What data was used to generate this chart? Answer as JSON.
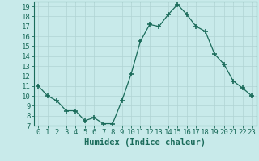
{
  "xlabel": "Humidex (Indice chaleur)",
  "x_values": [
    0,
    1,
    2,
    3,
    4,
    5,
    6,
    7,
    8,
    9,
    10,
    11,
    12,
    13,
    14,
    15,
    16,
    17,
    18,
    19,
    20,
    21,
    22,
    23
  ],
  "y_values": [
    11,
    10,
    9.5,
    8.5,
    8.5,
    7.5,
    7.8,
    7.2,
    7.2,
    9.5,
    12.2,
    15.5,
    17.2,
    17.0,
    18.2,
    19.2,
    18.2,
    17.0,
    16.5,
    14.2,
    13.2,
    11.5,
    10.8,
    10.0
  ],
  "ylim": [
    7,
    19.5
  ],
  "xlim": [
    -0.5,
    23.5
  ],
  "yticks": [
    7,
    8,
    9,
    10,
    11,
    12,
    13,
    14,
    15,
    16,
    17,
    18,
    19
  ],
  "xticks": [
    0,
    1,
    2,
    3,
    4,
    5,
    6,
    7,
    8,
    9,
    10,
    11,
    12,
    13,
    14,
    15,
    16,
    17,
    18,
    19,
    20,
    21,
    22,
    23
  ],
  "line_color": "#1a6b5a",
  "marker_color": "#1a6b5a",
  "bg_color": "#c8eaea",
  "grid_color": "#b0d4d4",
  "border_color": "#1a6b5a",
  "label_color": "#1a6b5a",
  "tick_fontsize": 6.5,
  "xlabel_fontsize": 7.5
}
